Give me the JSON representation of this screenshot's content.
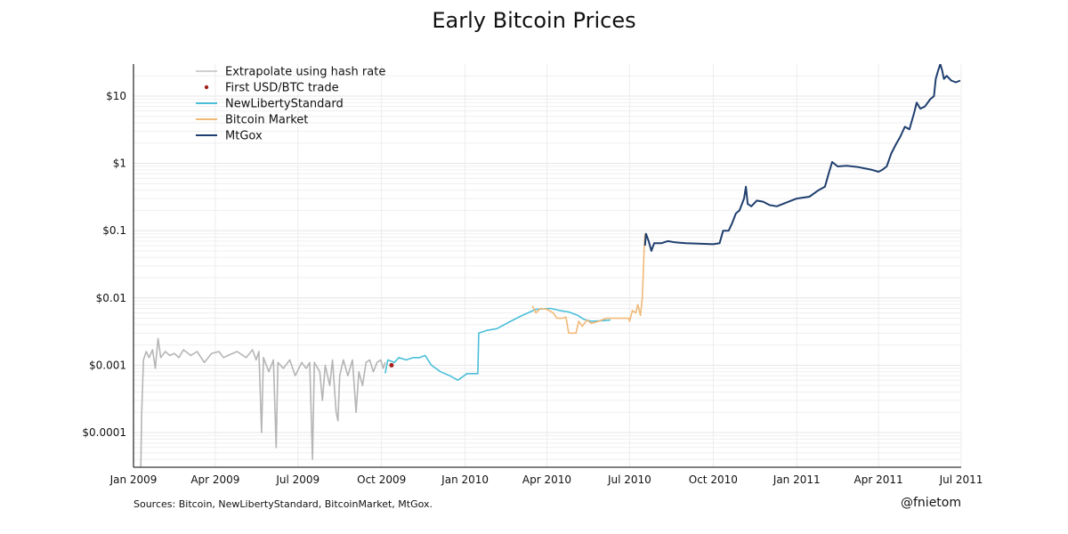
{
  "chart_data": {
    "type": "line",
    "title": "Early Bitcoin Prices",
    "xlabel": "",
    "ylabel": "",
    "yscale": "log",
    "xlim": [
      "2009-01-01",
      "2011-07-01"
    ],
    "ylim": [
      3.05e-05,
      29.9
    ],
    "grid": true,
    "legend_position": "top-left",
    "x_ticks": [
      {
        "date": "2009-01-01",
        "label": "Jan 2009"
      },
      {
        "date": "2009-04-01",
        "label": "Apr 2009"
      },
      {
        "date": "2009-07-01",
        "label": "Jul 2009"
      },
      {
        "date": "2009-10-01",
        "label": "Oct 2009"
      },
      {
        "date": "2010-01-01",
        "label": "Jan 2010"
      },
      {
        "date": "2010-04-01",
        "label": "Apr 2010"
      },
      {
        "date": "2010-07-01",
        "label": "Jul 2010"
      },
      {
        "date": "2010-10-01",
        "label": "Oct 2010"
      },
      {
        "date": "2011-01-01",
        "label": "Jan 2011"
      },
      {
        "date": "2011-04-01",
        "label": "Apr 2011"
      },
      {
        "date": "2011-07-01",
        "label": "Jul 2011"
      }
    ],
    "y_ticks": [
      {
        "value": 10,
        "label": "$10"
      },
      {
        "value": 1,
        "label": "$1"
      },
      {
        "value": 0.1,
        "label": "$0.1"
      },
      {
        "value": 0.01,
        "label": "$0.01"
      },
      {
        "value": 0.001,
        "label": "$0.001"
      },
      {
        "value": 0.0001,
        "label": "$0.0001"
      }
    ],
    "series": [
      {
        "name": "Extrapolate using hash rate",
        "kind": "line",
        "color": "#b5b5b5",
        "points": [
          [
            "2009-01-09",
            3e-05
          ],
          [
            "2009-01-10",
            0.0002
          ],
          [
            "2009-01-12",
            0.0012
          ],
          [
            "2009-01-15",
            0.0016
          ],
          [
            "2009-01-18",
            0.0013
          ],
          [
            "2009-01-22",
            0.0017
          ],
          [
            "2009-01-25",
            0.0009
          ],
          [
            "2009-01-28",
            0.0025
          ],
          [
            "2009-01-31",
            0.0013
          ],
          [
            "2009-02-05",
            0.0016
          ],
          [
            "2009-02-10",
            0.0014
          ],
          [
            "2009-02-15",
            0.0015
          ],
          [
            "2009-02-20",
            0.0013
          ],
          [
            "2009-02-25",
            0.0017
          ],
          [
            "2009-03-05",
            0.0014
          ],
          [
            "2009-03-12",
            0.0016
          ],
          [
            "2009-03-20",
            0.0011
          ],
          [
            "2009-03-28",
            0.0015
          ],
          [
            "2009-04-05",
            0.0016
          ],
          [
            "2009-04-10",
            0.0013
          ],
          [
            "2009-04-15",
            0.0014
          ],
          [
            "2009-04-25",
            0.0016
          ],
          [
            "2009-05-05",
            0.0013
          ],
          [
            "2009-05-12",
            0.0017
          ],
          [
            "2009-05-16",
            0.0012
          ],
          [
            "2009-05-19",
            0.0016
          ],
          [
            "2009-05-22",
            0.0001
          ],
          [
            "2009-05-24",
            0.0013
          ],
          [
            "2009-05-30",
            0.0008
          ],
          [
            "2009-06-04",
            0.0012
          ],
          [
            "2009-06-07",
            6e-05
          ],
          [
            "2009-06-09",
            0.0011
          ],
          [
            "2009-06-15",
            0.0009
          ],
          [
            "2009-06-22",
            0.0012
          ],
          [
            "2009-06-28",
            0.0007
          ],
          [
            "2009-07-05",
            0.0011
          ],
          [
            "2009-07-10",
            0.0009
          ],
          [
            "2009-07-14",
            0.0011
          ],
          [
            "2009-07-17",
            4e-05
          ],
          [
            "2009-07-19",
            0.0011
          ],
          [
            "2009-07-25",
            0.0008
          ],
          [
            "2009-07-28",
            0.0003
          ],
          [
            "2009-07-31",
            0.001
          ],
          [
            "2009-08-05",
            0.0005
          ],
          [
            "2009-08-08",
            0.0012
          ],
          [
            "2009-08-12",
            0.0002
          ],
          [
            "2009-08-14",
            0.00015
          ],
          [
            "2009-08-16",
            0.0007
          ],
          [
            "2009-08-20",
            0.0012
          ],
          [
            "2009-08-25",
            0.0007
          ],
          [
            "2009-08-30",
            0.0012
          ],
          [
            "2009-09-03",
            0.0002
          ],
          [
            "2009-09-06",
            0.0008
          ],
          [
            "2009-09-10",
            0.0005
          ],
          [
            "2009-09-14",
            0.0011
          ],
          [
            "2009-09-18",
            0.0012
          ],
          [
            "2009-09-22",
            0.0008
          ],
          [
            "2009-09-26",
            0.0011
          ],
          [
            "2009-09-30",
            0.0012
          ],
          [
            "2009-10-03",
            0.0009
          ],
          [
            "2009-10-05",
            0.0011
          ]
        ]
      },
      {
        "name": "First USD/BTC trade",
        "kind": "point",
        "color": "#a3201d",
        "points": [
          [
            "2009-10-12",
            0.001
          ]
        ]
      },
      {
        "name": "NewLibertyStandard",
        "kind": "line",
        "color": "#4bbfd9",
        "points": [
          [
            "2009-10-05",
            0.00076
          ],
          [
            "2009-10-08",
            0.0012
          ],
          [
            "2009-10-15",
            0.0011
          ],
          [
            "2009-10-20",
            0.0013
          ],
          [
            "2009-10-28",
            0.0012
          ],
          [
            "2009-11-05",
            0.0013
          ],
          [
            "2009-11-12",
            0.0013
          ],
          [
            "2009-11-18",
            0.0014
          ],
          [
            "2009-11-25",
            0.001
          ],
          [
            "2009-12-05",
            0.0008
          ],
          [
            "2009-12-15",
            0.0007
          ],
          [
            "2009-12-24",
            0.0006
          ],
          [
            "2010-01-03",
            0.00075
          ],
          [
            "2010-01-15",
            0.00075
          ],
          [
            "2010-01-16",
            0.003
          ],
          [
            "2010-01-25",
            0.0033
          ],
          [
            "2010-02-05",
            0.0035
          ],
          [
            "2010-02-20",
            0.0045
          ],
          [
            "2010-03-05",
            0.0055
          ],
          [
            "2010-03-20",
            0.0068
          ],
          [
            "2010-04-05",
            0.007
          ],
          [
            "2010-04-15",
            0.0065
          ],
          [
            "2010-04-25",
            0.0062
          ],
          [
            "2010-05-05",
            0.0055
          ],
          [
            "2010-05-12",
            0.0048
          ],
          [
            "2010-05-20",
            0.0045
          ],
          [
            "2010-06-01",
            0.0046
          ],
          [
            "2010-06-10",
            0.0047
          ]
        ]
      },
      {
        "name": "Bitcoin Market",
        "kind": "line",
        "color": "#f0b978",
        "points": [
          [
            "2010-03-16",
            0.0076
          ],
          [
            "2010-03-20",
            0.006
          ],
          [
            "2010-03-25",
            0.007
          ],
          [
            "2010-04-01",
            0.0068
          ],
          [
            "2010-04-08",
            0.006
          ],
          [
            "2010-04-12",
            0.005
          ],
          [
            "2010-04-18",
            0.005
          ],
          [
            "2010-04-22",
            0.0052
          ],
          [
            "2010-04-25",
            0.003
          ],
          [
            "2010-05-03",
            0.003
          ],
          [
            "2010-05-06",
            0.0045
          ],
          [
            "2010-05-10",
            0.0038
          ],
          [
            "2010-05-15",
            0.0047
          ],
          [
            "2010-05-20",
            0.0042
          ],
          [
            "2010-05-28",
            0.0045
          ],
          [
            "2010-06-05",
            0.005
          ],
          [
            "2010-06-20",
            0.005
          ],
          [
            "2010-06-30",
            0.005
          ],
          [
            "2010-07-01",
            0.0045
          ],
          [
            "2010-07-04",
            0.0065
          ],
          [
            "2010-07-08",
            0.006
          ],
          [
            "2010-07-10",
            0.008
          ],
          [
            "2010-07-13",
            0.0055
          ],
          [
            "2010-07-15",
            0.01
          ],
          [
            "2010-07-17",
            0.05
          ],
          [
            "2010-07-18",
            0.09
          ]
        ]
      },
      {
        "name": "MtGox",
        "kind": "line",
        "color": "#1f3f6e",
        "points": [
          [
            "2010-07-18",
            0.06
          ],
          [
            "2010-07-19",
            0.09
          ],
          [
            "2010-07-22",
            0.07
          ],
          [
            "2010-07-25",
            0.05
          ],
          [
            "2010-07-28",
            0.065
          ],
          [
            "2010-08-05",
            0.065
          ],
          [
            "2010-08-12",
            0.07
          ],
          [
            "2010-08-20",
            0.067
          ],
          [
            "2010-09-01",
            0.065
          ],
          [
            "2010-09-15",
            0.064
          ],
          [
            "2010-10-01",
            0.063
          ],
          [
            "2010-10-08",
            0.065
          ],
          [
            "2010-10-12",
            0.1
          ],
          [
            "2010-10-18",
            0.1
          ],
          [
            "2010-10-22",
            0.13
          ],
          [
            "2010-10-26",
            0.18
          ],
          [
            "2010-10-30",
            0.2
          ],
          [
            "2010-11-04",
            0.3
          ],
          [
            "2010-11-06",
            0.45
          ],
          [
            "2010-11-08",
            0.25
          ],
          [
            "2010-11-12",
            0.23
          ],
          [
            "2010-11-18",
            0.28
          ],
          [
            "2010-11-25",
            0.27
          ],
          [
            "2010-12-02",
            0.24
          ],
          [
            "2010-12-10",
            0.23
          ],
          [
            "2010-12-20",
            0.26
          ],
          [
            "2011-01-01",
            0.3
          ],
          [
            "2011-01-15",
            0.32
          ],
          [
            "2011-01-25",
            0.4
          ],
          [
            "2011-02-01",
            0.45
          ],
          [
            "2011-02-05",
            0.7
          ],
          [
            "2011-02-09",
            1.05
          ],
          [
            "2011-02-15",
            0.9
          ],
          [
            "2011-02-25",
            0.92
          ],
          [
            "2011-03-10",
            0.88
          ],
          [
            "2011-03-25",
            0.8
          ],
          [
            "2011-04-01",
            0.75
          ],
          [
            "2011-04-05",
            0.8
          ],
          [
            "2011-04-10",
            0.9
          ],
          [
            "2011-04-15",
            1.4
          ],
          [
            "2011-04-20",
            1.9
          ],
          [
            "2011-04-25",
            2.5
          ],
          [
            "2011-04-30",
            3.5
          ],
          [
            "2011-05-05",
            3.2
          ],
          [
            "2011-05-10",
            5.5
          ],
          [
            "2011-05-13",
            8
          ],
          [
            "2011-05-17",
            6.5
          ],
          [
            "2011-05-22",
            7
          ],
          [
            "2011-05-28",
            9
          ],
          [
            "2011-06-01",
            10
          ],
          [
            "2011-06-03",
            18
          ],
          [
            "2011-06-06",
            25
          ],
          [
            "2011-06-08",
            30
          ],
          [
            "2011-06-10",
            24
          ],
          [
            "2011-06-12",
            18
          ],
          [
            "2011-06-15",
            20
          ],
          [
            "2011-06-20",
            17
          ],
          [
            "2011-06-25",
            16
          ],
          [
            "2011-06-30",
            17
          ]
        ]
      }
    ],
    "footnote": "Sources: Bitcoin, NewLibertyStandard, BitcoinMarket, MtGox.",
    "credit": "@fnietom"
  }
}
